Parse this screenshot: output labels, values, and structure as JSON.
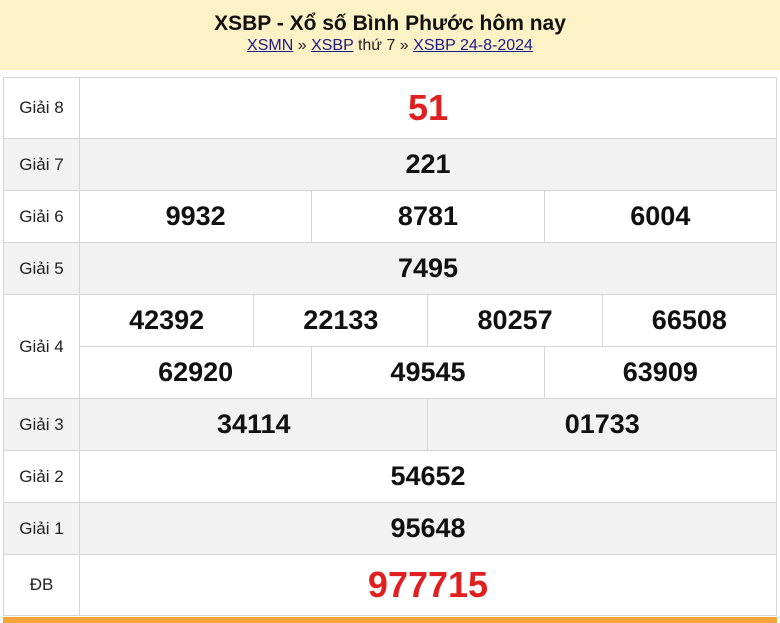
{
  "header": {
    "title": "XSBP - Xổ số Bình Phước hôm nay",
    "crumb1": "XSMN",
    "sep1": "»",
    "crumb2": "XSBP",
    "day": "thứ 7",
    "sep2": "»",
    "crumb3": "XSBP 24-8-2024"
  },
  "prizes": {
    "g8": {
      "label": "Giải 8",
      "values": [
        "51"
      ]
    },
    "g7": {
      "label": "Giải 7",
      "values": [
        "221"
      ]
    },
    "g6": {
      "label": "Giải 6",
      "values": [
        "9932",
        "8781",
        "6004"
      ]
    },
    "g5": {
      "label": "Giải 5",
      "values": [
        "7495"
      ]
    },
    "g4": {
      "label": "Giải 4",
      "values": [
        "42392",
        "22133",
        "80257",
        "66508",
        "62920",
        "49545",
        "63909"
      ]
    },
    "g3": {
      "label": "Giải 3",
      "values": [
        "34114",
        "01733"
      ]
    },
    "g2": {
      "label": "Giải 2",
      "values": [
        "54652"
      ]
    },
    "g1": {
      "label": "Giải 1",
      "values": [
        "95648"
      ]
    },
    "db": {
      "label": "ĐB",
      "values": [
        "977715"
      ]
    }
  },
  "colors": {
    "highlight": "#e02020",
    "accent_bar": "#f7a33a",
    "header_bg": "#fdf2c5"
  }
}
